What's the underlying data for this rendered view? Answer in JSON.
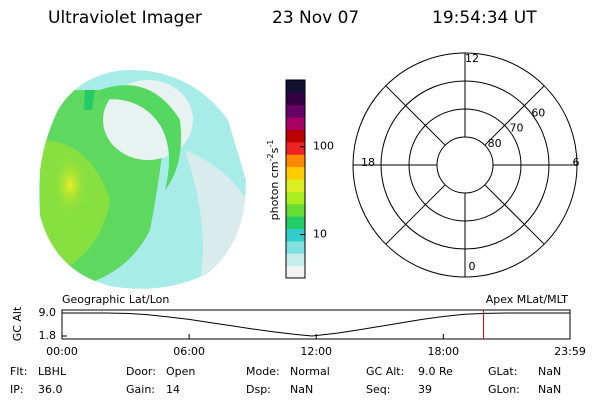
{
  "header": {
    "title": "Ultraviolet Imager",
    "date": "23 Nov 07",
    "time": "19:54:34 UT"
  },
  "colorbar": {
    "label_parts": [
      "photon cm",
      "-2",
      "s",
      "-1"
    ],
    "lim": [
      3.2,
      575
    ],
    "ticks": [
      10,
      100
    ],
    "log": true,
    "colors": [
      "#f2f2f2",
      "#c6ecec",
      "#7fe0e0",
      "#33cccc",
      "#22cc66",
      "#66dd33",
      "#aaee22",
      "#ddee22",
      "#ffcc00",
      "#ff8800",
      "#ee2222",
      "#bb0000",
      "#aa0066",
      "#660066",
      "#330044",
      "#111133"
    ]
  },
  "polar": {
    "lat_rings": [
      80,
      70,
      60
    ],
    "lat_edge": 50,
    "mlt_labels": [
      12,
      18,
      6,
      0
    ]
  },
  "chart_data": {
    "type": "line",
    "title_left": "Geographic Lat/Lon",
    "title_right": "Apex MLat/MLT",
    "ylabel": "GC Alt",
    "x": [
      0,
      2,
      3,
      4,
      5,
      6,
      7,
      8,
      9,
      10,
      11,
      11.8,
      13,
      14,
      15,
      16,
      17,
      18,
      19,
      20,
      21,
      23.98
    ],
    "values": [
      9.0,
      9.0,
      8.9,
      8.5,
      7.8,
      7.0,
      6.0,
      5.0,
      4.0,
      3.1,
      2.3,
      1.8,
      2.7,
      3.7,
      4.8,
      5.9,
      7.0,
      7.9,
      8.6,
      8.9,
      9.0,
      9.0
    ],
    "color": "#000000",
    "xlim": [
      0,
      23.98
    ],
    "ylim": [
      1.8,
      9.0
    ],
    "xticks": [
      {
        "value": 0,
        "label": "00:00"
      },
      {
        "value": 6,
        "label": "06:00"
      },
      {
        "value": 12,
        "label": "12:00"
      },
      {
        "value": 18,
        "label": "18:00"
      },
      {
        "value": 23.98,
        "label": "23:59"
      }
    ],
    "yticks": [
      {
        "value": 9.0,
        "label": "9.0"
      },
      {
        "value": 1.8,
        "label": "1.8"
      }
    ],
    "marker_x": 19.9,
    "marker_color": "#cc0000"
  },
  "info": {
    "rows": [
      [
        [
          "Flt:",
          "LBHL"
        ],
        [
          "Door:",
          "Open"
        ],
        [
          "Mode:",
          "Normal"
        ],
        [
          "GC Alt:",
          "9.0 Re"
        ],
        [
          "GLat:",
          "NaN"
        ]
      ],
      [
        [
          "IP:",
          "36.0"
        ],
        [
          "Gain:",
          "14"
        ],
        [
          "Dsp:",
          "NaN"
        ],
        [
          "Seq:",
          "39"
        ],
        [
          "GLon:",
          "NaN"
        ]
      ]
    ]
  }
}
